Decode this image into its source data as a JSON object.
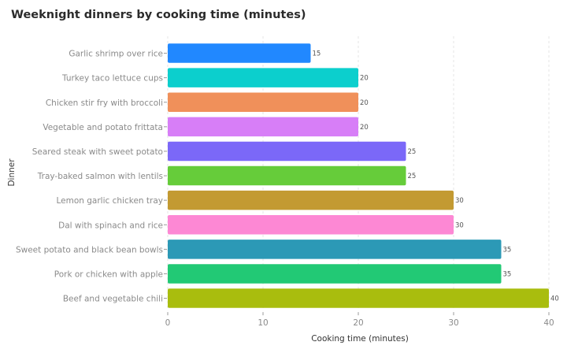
{
  "chart_data": {
    "type": "bar",
    "orientation": "horizontal",
    "title": "Weeknight dinners by cooking time (minutes)",
    "xlabel": "Cooking time (minutes)",
    "ylabel": "Dinner",
    "xlim": [
      0,
      40
    ],
    "x_ticks": [
      0,
      10,
      20,
      30,
      40
    ],
    "grid": "vertical dashed",
    "categories": [
      "Garlic shrimp over rice",
      "Turkey taco lettuce cups",
      "Chicken stir fry with broccoli",
      "Vegetable and potato frittata",
      "Seared steak with sweet potato",
      "Tray-baked salmon with lentils",
      "Lemon garlic chicken tray",
      "Dal with spinach and rice",
      "Sweet potato and black bean bowls",
      "Pork or chicken with apple",
      "Beef and vegetable chili"
    ],
    "values": [
      15,
      20,
      20,
      20,
      25,
      25,
      30,
      30,
      35,
      35,
      40
    ],
    "colors": [
      "#2188ff",
      "#0ccfcd",
      "#f0905a",
      "#d77ef7",
      "#7b68f8",
      "#66cc3a",
      "#c39a32",
      "#fd88d4",
      "#2c99b6",
      "#22c975",
      "#a9bd0e"
    ]
  }
}
